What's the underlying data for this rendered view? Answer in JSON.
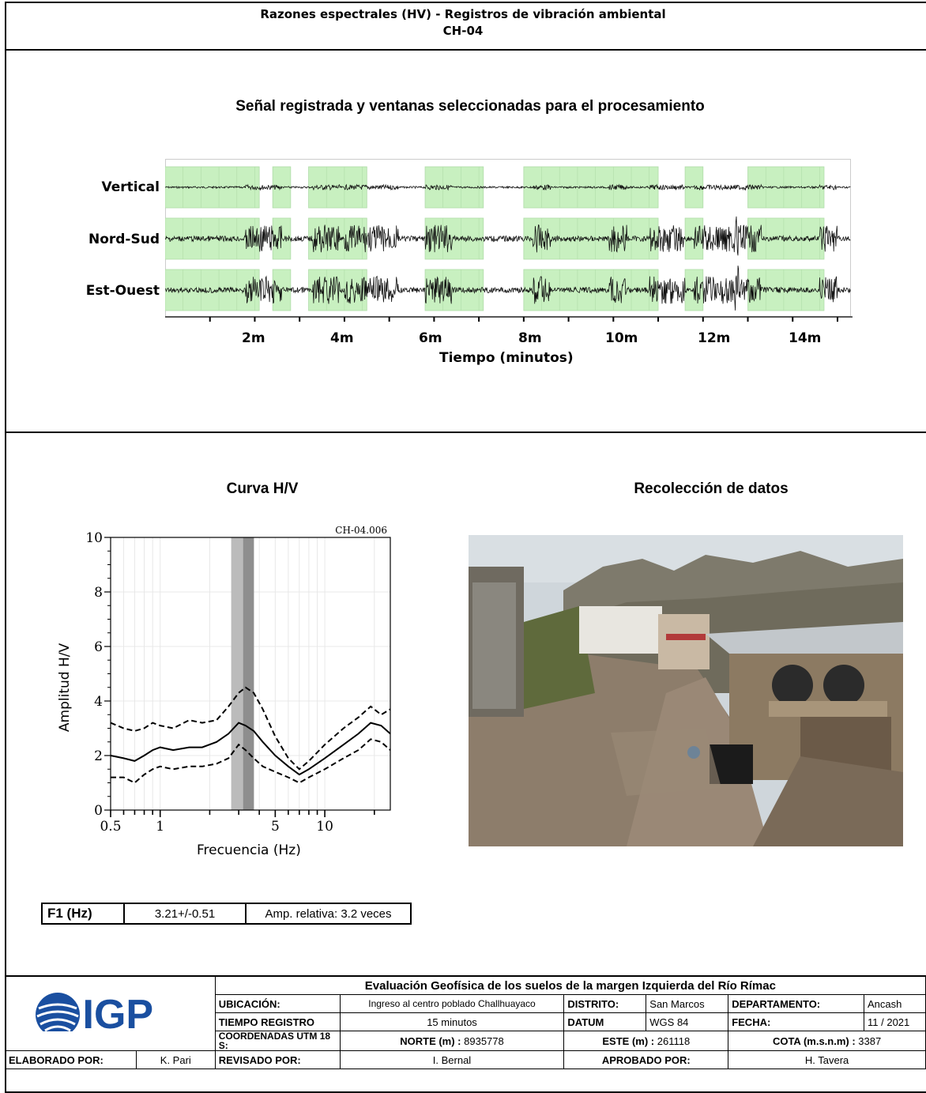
{
  "header": {
    "title_line1": "Razones espectrales (HV) - Registros de vibración ambiental",
    "title_line2": "CH-04"
  },
  "signal_section": {
    "title": "Señal registrada y ventanas seleccionadas para el procesamiento",
    "channels": [
      "Vertical",
      "Nord-Sud",
      "Est-Ouest"
    ],
    "x_tick_labels": [
      "2m",
      "4m",
      "6m",
      "8m",
      "10m",
      "12m",
      "14m"
    ],
    "x_axis_title": "Tiempo (minutos)",
    "window_color": "#c8f0c0",
    "selected_windows_minutes": [
      [
        0.0,
        2.1
      ],
      [
        2.4,
        2.8
      ],
      [
        3.2,
        4.5
      ],
      [
        5.8,
        7.1
      ],
      [
        8.0,
        11.0
      ],
      [
        11.6,
        12.0
      ],
      [
        13.0,
        14.7
      ]
    ]
  },
  "hv_section": {
    "title": "Curva H/V",
    "plot_id": "CH-04.006",
    "ylabel": "Amplitud H/V",
    "xlabel": "Frecuencia (Hz)"
  },
  "chart_data": {
    "type": "line",
    "title": "Curva H/V",
    "xlabel": "Frecuencia (Hz)",
    "ylabel": "Amplitud H/V",
    "x_scale": "log",
    "xlim": [
      0.5,
      25
    ],
    "ylim": [
      0,
      10
    ],
    "x_tick_labels": [
      "0.5",
      "1",
      "5",
      "10"
    ],
    "y_tick_labels": [
      "0",
      "2",
      "4",
      "6",
      "8",
      "10"
    ],
    "peak_band_hz": [
      2.7,
      3.72
    ],
    "peak_center_hz": 3.21,
    "series": [
      {
        "style": "solid",
        "x": [
          0.5,
          0.6,
          0.7,
          0.8,
          0.9,
          1.0,
          1.2,
          1.5,
          1.8,
          2.2,
          2.6,
          3.0,
          3.3,
          3.7,
          4.2,
          5.0,
          6.0,
          7.0,
          8.0,
          10,
          13,
          16,
          19,
          22,
          25
        ],
        "y": [
          2.0,
          1.9,
          1.8,
          2.0,
          2.2,
          2.3,
          2.2,
          2.3,
          2.3,
          2.5,
          2.8,
          3.2,
          3.1,
          2.9,
          2.5,
          2.0,
          1.6,
          1.3,
          1.5,
          1.9,
          2.4,
          2.8,
          3.2,
          3.1,
          2.8
        ]
      },
      {
        "style": "dashed",
        "x": [
          0.5,
          0.6,
          0.7,
          0.8,
          0.9,
          1.0,
          1.2,
          1.5,
          1.8,
          2.2,
          2.6,
          3.0,
          3.3,
          3.7,
          4.2,
          5.0,
          6.0,
          7.0,
          8.0,
          10,
          13,
          16,
          19,
          22,
          25
        ],
        "y": [
          3.2,
          3.0,
          2.9,
          3.0,
          3.2,
          3.1,
          3.0,
          3.3,
          3.2,
          3.3,
          3.8,
          4.3,
          4.5,
          4.3,
          3.7,
          2.7,
          1.9,
          1.5,
          1.8,
          2.4,
          3.0,
          3.4,
          3.8,
          3.5,
          3.7
        ]
      },
      {
        "style": "dashed",
        "x": [
          0.5,
          0.6,
          0.7,
          0.8,
          0.9,
          1.0,
          1.2,
          1.5,
          1.8,
          2.2,
          2.6,
          3.0,
          3.3,
          3.7,
          4.2,
          5.0,
          6.0,
          7.0,
          8.0,
          10,
          13,
          16,
          19,
          22,
          25
        ],
        "y": [
          1.2,
          1.2,
          1.0,
          1.3,
          1.5,
          1.6,
          1.5,
          1.6,
          1.6,
          1.7,
          1.9,
          2.4,
          2.2,
          1.9,
          1.6,
          1.4,
          1.2,
          1.0,
          1.2,
          1.5,
          1.9,
          2.2,
          2.6,
          2.5,
          2.2
        ]
      }
    ]
  },
  "photo_section": {
    "title": "Recolección de datos"
  },
  "results": {
    "f1_label": "F1 (Hz)",
    "f1_value": "3.21+/-0.51",
    "amp_relative": "Amp. relativa: 3.2 veces"
  },
  "footer": {
    "logo_text": "IGP",
    "logo_color": "#1a4fa0",
    "project_title": "Evaluación Geofísica de los suelos de la margen Izquierda del Río Rímac",
    "ubicacion_label": "UBICACIÓN:",
    "ubicacion_value": "Ingreso al centro poblado Challhuayaco",
    "distrito_label": "DISTRITO:",
    "distrito_value": "San Marcos",
    "departamento_label": "DEPARTAMENTO:",
    "departamento_value": "Ancash",
    "tiempo_label": "TIEMPO REGISTRO",
    "tiempo_value": "15 minutos",
    "datum_label": "DATUM",
    "datum_value": "WGS 84",
    "fecha_label": "FECHA:",
    "fecha_value": "11 / 2021",
    "coord_label": "COORDENADAS UTM 18 S:",
    "norte_label": "NORTE (m) :",
    "norte_value": "8935778",
    "este_label": "ESTE (m) :",
    "este_value": "261118",
    "cota_label": "COTA (m.s.n.m) :",
    "cota_value": "3387",
    "elaborado_label": "ELABORADO POR:",
    "elaborado_value": "K. Pari",
    "revisado_label": "REVISADO POR:",
    "revisado_value": "I. Bernal",
    "aprobado_label": "APROBADO POR:",
    "aprobado_value": "H. Tavera"
  }
}
